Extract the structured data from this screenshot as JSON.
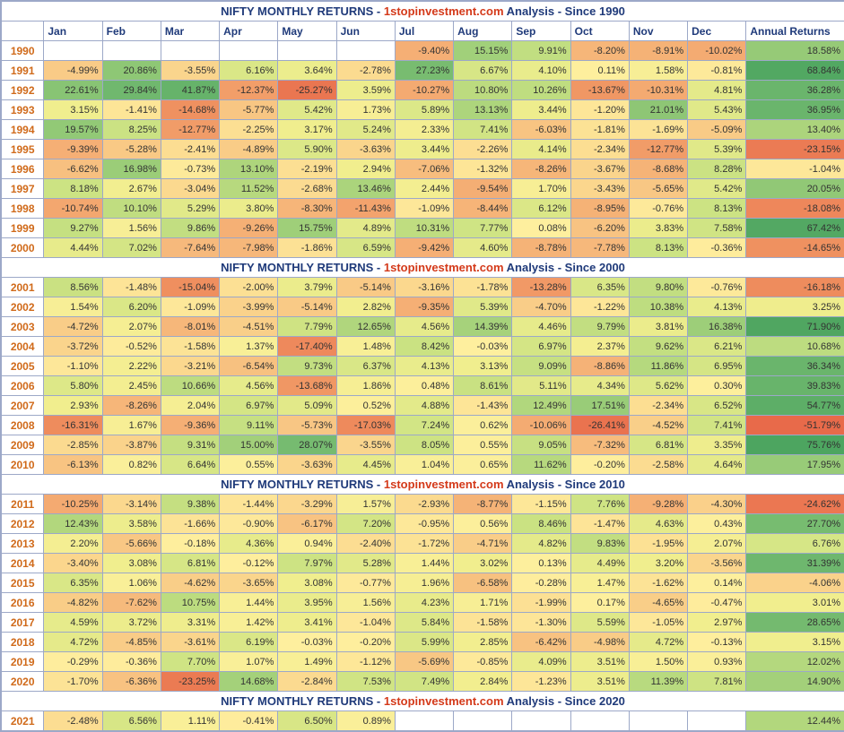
{
  "title_prefix": "NIFTY MONTHLY RETURNS - ",
  "title_brand": "1stopinvestment.com",
  "title_mid": " Analysis - ",
  "columns": [
    "Jan",
    "Feb",
    "Mar",
    "Apr",
    "May",
    "Jun",
    "Jul",
    "Aug",
    "Sep",
    "Oct",
    "Nov",
    "Dec",
    "Annual Returns"
  ],
  "sections": [
    {
      "since": "Since 1990",
      "rows": [
        {
          "year": "1990",
          "v": [
            null,
            null,
            null,
            null,
            null,
            null,
            -9.4,
            15.15,
            9.91,
            -8.2,
            -8.91,
            -10.02,
            18.58
          ]
        },
        {
          "year": "1991",
          "v": [
            -4.99,
            20.86,
            -3.55,
            6.16,
            3.64,
            -2.78,
            27.23,
            6.67,
            4.1,
            0.11,
            1.58,
            -0.81,
            68.84
          ]
        },
        {
          "year": "1992",
          "v": [
            22.61,
            29.84,
            41.87,
            -12.37,
            -25.27,
            3.59,
            -10.27,
            10.8,
            10.26,
            -13.67,
            -10.31,
            4.81,
            36.28
          ]
        },
        {
          "year": "1993",
          "v": [
            3.15,
            -1.41,
            -14.68,
            -5.77,
            5.42,
            1.73,
            5.89,
            13.13,
            3.44,
            -1.2,
            21.01,
            5.43,
            36.95
          ]
        },
        {
          "year": "1994",
          "v": [
            19.57,
            8.25,
            -12.77,
            -2.25,
            3.17,
            5.24,
            2.33,
            7.41,
            -6.03,
            -1.81,
            -1.69,
            -5.09,
            13.4
          ]
        },
        {
          "year": "1995",
          "v": [
            -9.39,
            -5.28,
            -2.41,
            -4.89,
            5.9,
            -3.63,
            3.44,
            -2.26,
            4.14,
            -2.34,
            -12.77,
            5.39,
            -23.15
          ]
        },
        {
          "year": "1996",
          "v": [
            -6.62,
            16.98,
            -0.73,
            13.1,
            -2.19,
            2.94,
            -7.06,
            -1.32,
            -8.26,
            -3.67,
            -8.68,
            8.28,
            -1.04
          ]
        },
        {
          "year": "1997",
          "v": [
            8.18,
            2.67,
            -3.04,
            11.52,
            -2.68,
            13.46,
            2.44,
            -9.54,
            1.7,
            -3.43,
            -5.65,
            5.42,
            20.05
          ]
        },
        {
          "year": "1998",
          "v": [
            -10.74,
            10.1,
            5.29,
            3.8,
            -8.3,
            -11.43,
            -1.09,
            -8.44,
            6.12,
            -8.95,
            -0.76,
            8.13,
            -18.08
          ]
        },
        {
          "year": "1999",
          "v": [
            9.27,
            1.56,
            9.86,
            -9.26,
            15.75,
            4.89,
            10.31,
            7.77,
            0.08,
            -6.2,
            3.83,
            7.58,
            67.42
          ]
        },
        {
          "year": "2000",
          "v": [
            4.44,
            7.02,
            -7.64,
            -7.98,
            -1.86,
            6.59,
            -9.42,
            4.6,
            -8.78,
            -7.78,
            8.13,
            -0.36,
            -14.65
          ]
        }
      ]
    },
    {
      "since": "Since 2000",
      "rows": [
        {
          "year": "2001",
          "v": [
            8.56,
            -1.48,
            -15.04,
            -2.0,
            3.79,
            -5.14,
            -3.16,
            -1.78,
            -13.28,
            6.35,
            9.8,
            -0.76,
            -16.18
          ]
        },
        {
          "year": "2002",
          "v": [
            1.54,
            6.2,
            -1.09,
            -3.99,
            -5.14,
            2.82,
            -9.35,
            5.39,
            -4.7,
            -1.22,
            10.38,
            4.13,
            3.25
          ]
        },
        {
          "year": "2003",
          "v": [
            -4.72,
            2.07,
            -8.01,
            -4.51,
            7.79,
            12.65,
            4.56,
            14.39,
            4.46,
            9.79,
            3.81,
            16.38,
            71.9
          ]
        },
        {
          "year": "2004",
          "v": [
            -3.72,
            -0.52,
            -1.58,
            1.37,
            -17.4,
            1.48,
            8.42,
            -0.03,
            6.97,
            2.37,
            9.62,
            6.21,
            10.68
          ]
        },
        {
          "year": "2005",
          "v": [
            -1.1,
            2.22,
            -3.21,
            -6.54,
            9.73,
            6.37,
            4.13,
            3.13,
            9.09,
            -8.86,
            11.86,
            6.95,
            36.34
          ]
        },
        {
          "year": "2006",
          "v": [
            5.8,
            2.45,
            10.66,
            4.56,
            -13.68,
            1.86,
            0.48,
            8.61,
            5.11,
            4.34,
            5.62,
            0.3,
            39.83
          ]
        },
        {
          "year": "2007",
          "v": [
            2.93,
            -8.26,
            2.04,
            6.97,
            5.09,
            0.52,
            4.88,
            -1.43,
            12.49,
            17.51,
            -2.34,
            6.52,
            54.77
          ]
        },
        {
          "year": "2008",
          "v": [
            -16.31,
            1.67,
            -9.36,
            9.11,
            -5.73,
            -17.03,
            7.24,
            0.62,
            -10.06,
            -26.41,
            -4.52,
            7.41,
            -51.79
          ]
        },
        {
          "year": "2009",
          "v": [
            -2.85,
            -3.87,
            9.31,
            15.0,
            28.07,
            -3.55,
            8.05,
            0.55,
            9.05,
            -7.32,
            6.81,
            3.35,
            75.76
          ]
        },
        {
          "year": "2010",
          "v": [
            -6.13,
            0.82,
            6.64,
            0.55,
            -3.63,
            4.45,
            1.04,
            0.65,
            11.62,
            -0.2,
            -2.58,
            4.64,
            17.95
          ]
        }
      ]
    },
    {
      "since": "Since 2010",
      "rows": [
        {
          "year": "2011",
          "v": [
            -10.25,
            -3.14,
            9.38,
            -1.44,
            -3.29,
            1.57,
            -2.93,
            -8.77,
            -1.15,
            7.76,
            -9.28,
            -4.3,
            -24.62
          ]
        },
        {
          "year": "2012",
          "v": [
            12.43,
            3.58,
            -1.66,
            -0.9,
            -6.17,
            7.2,
            -0.95,
            0.56,
            8.46,
            -1.47,
            4.63,
            0.43,
            27.7
          ]
        },
        {
          "year": "2013",
          "v": [
            2.2,
            -5.66,
            -0.18,
            4.36,
            0.94,
            -2.4,
            -1.72,
            -4.71,
            4.82,
            9.83,
            -1.95,
            2.07,
            6.76
          ]
        },
        {
          "year": "2014",
          "v": [
            -3.4,
            3.08,
            6.81,
            -0.12,
            7.97,
            5.28,
            1.44,
            3.02,
            0.13,
            4.49,
            3.2,
            -3.56,
            31.39
          ]
        },
        {
          "year": "2015",
          "v": [
            6.35,
            1.06,
            -4.62,
            -3.65,
            3.08,
            -0.77,
            1.96,
            -6.58,
            -0.28,
            1.47,
            -1.62,
            0.14,
            -4.06
          ]
        },
        {
          "year": "2016",
          "v": [
            -4.82,
            -7.62,
            10.75,
            1.44,
            3.95,
            1.56,
            4.23,
            1.71,
            -1.99,
            0.17,
            -4.65,
            -0.47,
            3.01
          ]
        },
        {
          "year": "2017",
          "v": [
            4.59,
            3.72,
            3.31,
            1.42,
            3.41,
            -1.04,
            5.84,
            -1.58,
            -1.3,
            5.59,
            -1.05,
            2.97,
            28.65
          ]
        },
        {
          "year": "2018",
          "v": [
            4.72,
            -4.85,
            -3.61,
            6.19,
            -0.03,
            -0.2,
            5.99,
            2.85,
            -6.42,
            -4.98,
            4.72,
            -0.13,
            3.15
          ]
        },
        {
          "year": "2019",
          "v": [
            -0.29,
            -0.36,
            7.7,
            1.07,
            1.49,
            -1.12,
            -5.69,
            -0.85,
            4.09,
            3.51,
            1.5,
            0.93,
            12.02
          ]
        },
        {
          "year": "2020",
          "v": [
            -1.7,
            -6.36,
            -23.25,
            14.68,
            -2.84,
            7.53,
            7.49,
            2.84,
            -1.23,
            3.51,
            11.39,
            7.81,
            14.9
          ]
        }
      ]
    },
    {
      "since": "Since 2020",
      "rows": [
        {
          "year": "2021",
          "v": [
            -2.48,
            6.56,
            1.11,
            -0.41,
            6.5,
            0.89,
            null,
            null,
            null,
            null,
            null,
            null,
            12.44
          ]
        }
      ]
    }
  ],
  "heatmap": {
    "stops": [
      {
        "v": -30,
        "c": "#e86a4a"
      },
      {
        "v": -15,
        "c": "#ef8f5f"
      },
      {
        "v": -8,
        "c": "#f6b77a"
      },
      {
        "v": -3,
        "c": "#fbd98f"
      },
      {
        "v": 0,
        "c": "#feef9e"
      },
      {
        "v": 3,
        "c": "#f1ee8e"
      },
      {
        "v": 8,
        "c": "#cde383"
      },
      {
        "v": 15,
        "c": "#a2d07a"
      },
      {
        "v": 30,
        "c": "#6fb86e"
      },
      {
        "v": 80,
        "c": "#4aa35f"
      }
    ]
  }
}
